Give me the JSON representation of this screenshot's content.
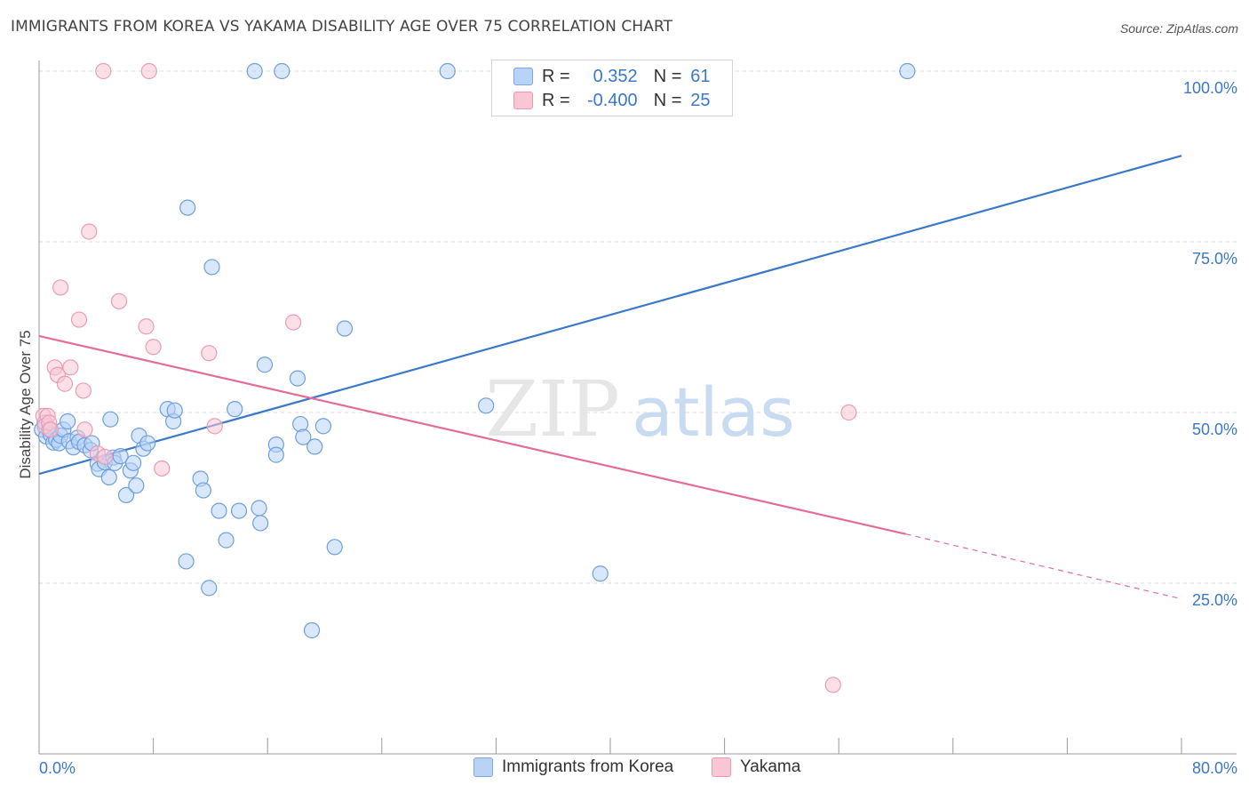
{
  "title": "IMMIGRANTS FROM KOREA VS YAKAMA DISABILITY AGE OVER 75 CORRELATION CHART",
  "source": "Source: ZipAtlas.com",
  "watermark": {
    "zip": "ZIP",
    "atlas": "atlas"
  },
  "colors": {
    "blue": "#3a78c8",
    "blue_fill": "#b8d3f5",
    "pink": "#e56c95",
    "pink_fill": "#f9c6d5",
    "tick_label": "#3a78c8"
  },
  "legend": {
    "r_label": "R =",
    "n_label": "N =",
    "series1": {
      "r": "0.352",
      "n": "61"
    },
    "series2": {
      "r": "-0.400",
      "n": "25"
    }
  },
  "chart_data": {
    "type": "scatter",
    "title": "IMMIGRANTS FROM KOREA VS YAKAMA DISABILITY AGE OVER 75 CORRELATION CHART",
    "xlabel": "",
    "ylabel": "Disability Age Over 75",
    "xlim": [
      0,
      80
    ],
    "ylim": [
      0,
      100
    ],
    "x_ticks": [
      "0.0%",
      "80.0%"
    ],
    "y_ticks": [
      {
        "value": 100,
        "label": "100.0%"
      },
      {
        "value": 75,
        "label": "75.0%"
      },
      {
        "value": 50,
        "label": "50.0%"
      },
      {
        "value": 25,
        "label": "25.0%"
      }
    ],
    "grid": true,
    "legend_position": "top-center",
    "series": [
      {
        "name": "Immigrants from Korea",
        "color": "#3a78c8",
        "points": [
          [
            0.2,
            47.5
          ],
          [
            0.4,
            48.5
          ],
          [
            0.5,
            46.5
          ],
          [
            0.7,
            47.5
          ],
          [
            0.8,
            46.8
          ],
          [
            1.0,
            45.6
          ],
          [
            1.2,
            46.0
          ],
          [
            1.4,
            45.5
          ],
          [
            1.5,
            46.6
          ],
          [
            1.7,
            47.5
          ],
          [
            2.0,
            48.7
          ],
          [
            2.1,
            45.8
          ],
          [
            2.4,
            44.9
          ],
          [
            2.7,
            46.3
          ],
          [
            2.8,
            45.7
          ],
          [
            3.2,
            45.2
          ],
          [
            3.6,
            44.5
          ],
          [
            3.7,
            45.5
          ],
          [
            4.1,
            42.5
          ],
          [
            4.2,
            41.7
          ],
          [
            4.6,
            42.7
          ],
          [
            4.9,
            40.5
          ],
          [
            5.0,
            49.0
          ],
          [
            5.2,
            43.4
          ],
          [
            5.3,
            42.6
          ],
          [
            5.7,
            43.6
          ],
          [
            6.1,
            37.9
          ],
          [
            6.4,
            41.5
          ],
          [
            6.6,
            42.6
          ],
          [
            6.8,
            39.3
          ],
          [
            7.0,
            46.6
          ],
          [
            7.3,
            44.7
          ],
          [
            7.6,
            45.5
          ],
          [
            9.0,
            50.5
          ],
          [
            9.4,
            48.7
          ],
          [
            9.5,
            50.3
          ],
          [
            10.3,
            28.2
          ],
          [
            10.4,
            80.0
          ],
          [
            11.3,
            40.3
          ],
          [
            11.5,
            38.6
          ],
          [
            11.9,
            24.3
          ],
          [
            12.1,
            71.3
          ],
          [
            12.6,
            35.6
          ],
          [
            13.1,
            31.3
          ],
          [
            13.7,
            50.5
          ],
          [
            14.0,
            35.6
          ],
          [
            15.4,
            36.0
          ],
          [
            15.5,
            33.8
          ],
          [
            15.8,
            57.0
          ],
          [
            16.6,
            45.3
          ],
          [
            16.6,
            43.8
          ],
          [
            18.1,
            55.0
          ],
          [
            18.3,
            48.3
          ],
          [
            18.5,
            46.4
          ],
          [
            19.1,
            18.1
          ],
          [
            19.3,
            45.0
          ],
          [
            19.9,
            48.0
          ],
          [
            20.7,
            30.3
          ],
          [
            21.4,
            62.3
          ],
          [
            31.3,
            51.0
          ],
          [
            39.3,
            26.4
          ]
        ]
      },
      {
        "name": "Yakama",
        "color": "#e56c95",
        "points": [
          [
            0.3,
            49.5
          ],
          [
            0.4,
            48.0
          ],
          [
            0.6,
            49.5
          ],
          [
            0.7,
            48.5
          ],
          [
            0.8,
            47.5
          ],
          [
            1.1,
            56.6
          ],
          [
            1.3,
            55.5
          ],
          [
            1.5,
            68.3
          ],
          [
            1.8,
            54.2
          ],
          [
            2.2,
            56.6
          ],
          [
            2.8,
            63.6
          ],
          [
            3.1,
            53.2
          ],
          [
            3.2,
            47.5
          ],
          [
            3.5,
            76.5
          ],
          [
            4.1,
            44.0
          ],
          [
            4.6,
            43.5
          ],
          [
            5.6,
            66.3
          ],
          [
            7.5,
            62.6
          ],
          [
            8.0,
            59.6
          ],
          [
            8.6,
            41.8
          ],
          [
            11.9,
            58.7
          ],
          [
            12.3,
            48.0
          ],
          [
            17.8,
            63.2
          ],
          [
            55.6,
            10.1
          ],
          [
            56.7,
            50.0
          ]
        ]
      }
    ],
    "offscale_points": [
      {
        "series": "Immigrants from Korea",
        "x": [
          15.1,
          17.0,
          28.6,
          60.8
        ]
      },
      {
        "series": "Yakama",
        "x": [
          4.5,
          7.7
        ]
      }
    ],
    "trend_lines": [
      {
        "series": "Immigrants from Korea",
        "x": [
          0,
          80
        ],
        "y": [
          41.0,
          87.6
        ]
      },
      {
        "series": "Yakama",
        "x": [
          0,
          60.7
        ],
        "y": [
          61.2,
          32.2
        ],
        "dashed_to": {
          "x": 80,
          "y": 22.7
        }
      }
    ]
  }
}
